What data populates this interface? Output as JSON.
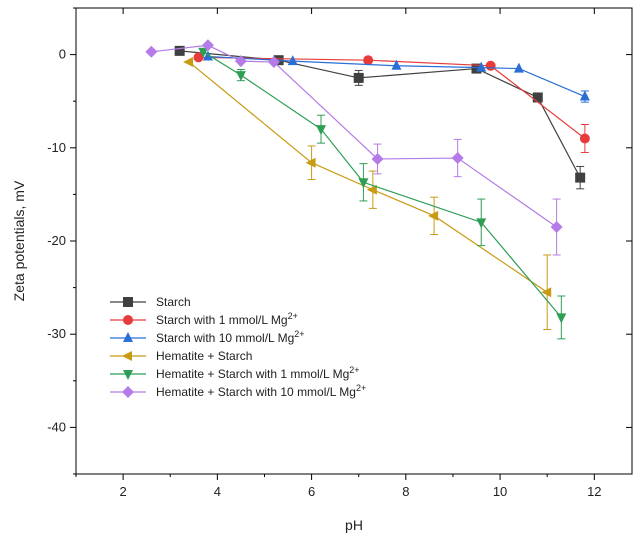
{
  "chart_data": {
    "type": "line",
    "xlabel": "pH",
    "ylabel": "Zeta potentials, mV",
    "xlim": [
      1,
      12.8
    ],
    "ylim": [
      -45,
      5
    ],
    "xticks": [
      2,
      4,
      6,
      8,
      10,
      12
    ],
    "yticks": [
      0,
      -10,
      -20,
      -30,
      -40
    ],
    "legend_placement": "lower-left",
    "series": [
      {
        "name_base": "Starch",
        "name_sup": "",
        "color": "#404040",
        "marker": "square",
        "points": [
          {
            "x": 3.2,
            "y": 0.4
          },
          {
            "x": 5.3,
            "y": -0.6
          },
          {
            "x": 7.0,
            "y": -2.5,
            "err": 0.8
          },
          {
            "x": 9.5,
            "y": -1.5
          },
          {
            "x": 10.8,
            "y": -4.6
          },
          {
            "x": 11.7,
            "y": -13.2,
            "err": 1.2
          }
        ]
      },
      {
        "name_base": "Starch with 1 mmol/L Mg",
        "name_sup": "2+",
        "color": "#e83b3b",
        "marker": "circle",
        "points": [
          {
            "x": 3.6,
            "y": -0.3
          },
          {
            "x": 7.2,
            "y": -0.6
          },
          {
            "x": 9.8,
            "y": -1.2
          },
          {
            "x": 11.8,
            "y": -9.0,
            "err": 1.5
          }
        ]
      },
      {
        "name_base": "Starch with 10 mmol/L Mg",
        "name_sup": "2+",
        "color": "#2a6fd6",
        "marker": "triangle-up",
        "points": [
          {
            "x": 3.8,
            "y": -0.2
          },
          {
            "x": 5.6,
            "y": -0.7
          },
          {
            "x": 7.8,
            "y": -1.2
          },
          {
            "x": 9.6,
            "y": -1.4
          },
          {
            "x": 10.4,
            "y": -1.5
          },
          {
            "x": 11.8,
            "y": -4.5,
            "err": 0.6
          }
        ]
      },
      {
        "name_base": "Hematite + Starch",
        "name_sup": "",
        "color": "#c89b14",
        "marker": "triangle-left",
        "points": [
          {
            "x": 3.4,
            "y": -0.8
          },
          {
            "x": 6.0,
            "y": -11.6,
            "err": 1.8
          },
          {
            "x": 7.3,
            "y": -14.5,
            "err": 2.0
          },
          {
            "x": 8.6,
            "y": -17.3,
            "err": 2.0
          },
          {
            "x": 11.0,
            "y": -25.5,
            "err": 4.0
          }
        ]
      },
      {
        "name_base": "Hematite + Starch with 1 mmol/L Mg",
        "name_sup": "2+",
        "color": "#2e9e55",
        "marker": "triangle-down",
        "points": [
          {
            "x": 3.7,
            "y": 0.3
          },
          {
            "x": 4.5,
            "y": -2.2,
            "err": 0.6
          },
          {
            "x": 6.2,
            "y": -8.0,
            "err": 1.5
          },
          {
            "x": 7.1,
            "y": -13.7,
            "err": 2.0
          },
          {
            "x": 9.6,
            "y": -18.0,
            "err": 2.5
          },
          {
            "x": 11.3,
            "y": -28.2,
            "err": 2.3
          }
        ]
      },
      {
        "name_base": "Hematite + Starch with 10 mmol/L Mg",
        "name_sup": "2+",
        "color": "#b57be6",
        "marker": "diamond",
        "points": [
          {
            "x": 2.6,
            "y": 0.3
          },
          {
            "x": 3.8,
            "y": 1.0
          },
          {
            "x": 4.5,
            "y": -0.7
          },
          {
            "x": 5.2,
            "y": -0.8
          },
          {
            "x": 7.4,
            "y": -11.2,
            "err": 1.6
          },
          {
            "x": 9.1,
            "y": -11.1,
            "err": 2.0
          },
          {
            "x": 11.2,
            "y": -18.5,
            "err": 3.0
          }
        ]
      }
    ]
  }
}
